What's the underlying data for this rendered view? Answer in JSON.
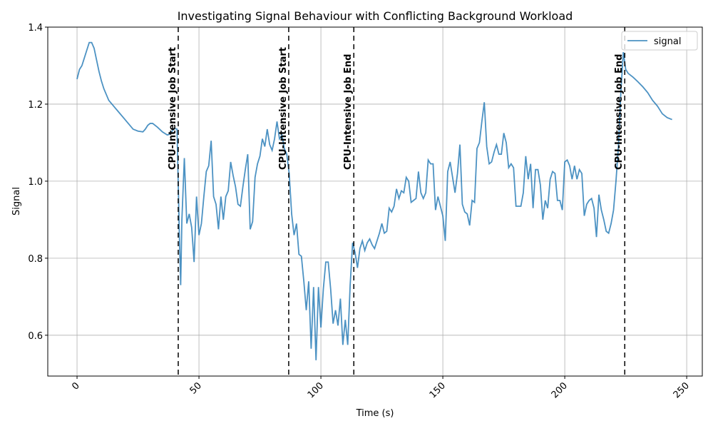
{
  "chart_data": {
    "type": "line",
    "title": "Investigating Signal Behaviour with Conflicting Background Workload",
    "x_label": "Time (s)",
    "y_label": "Signal",
    "x": [
      0,
      1,
      2,
      3,
      4,
      5,
      6,
      7,
      8,
      9,
      10,
      11,
      12,
      13,
      15,
      17,
      19,
      21,
      23,
      25,
      27,
      28,
      29,
      30,
      31,
      33,
      35,
      37,
      38,
      39,
      40,
      41,
      42,
      42.5,
      43,
      44,
      45,
      46,
      47,
      48,
      49,
      50,
      51,
      52,
      53,
      54,
      55,
      56,
      57,
      58,
      59,
      60,
      61,
      62,
      63,
      64,
      65,
      66,
      67,
      68,
      69,
      70,
      71,
      72,
      73,
      74,
      75,
      76,
      77,
      78,
      79,
      80,
      81,
      82,
      83,
      84,
      85,
      86,
      87,
      88,
      89,
      90,
      91,
      92,
      93,
      94,
      95,
      96,
      97,
      98,
      99,
      100,
      101,
      102,
      103,
      104,
      105,
      106,
      107,
      108,
      109,
      110,
      111,
      112,
      113,
      114,
      115,
      116,
      117,
      118,
      119,
      120,
      121,
      122,
      123,
      124,
      125,
      126,
      127,
      128,
      129,
      130,
      131,
      132,
      133,
      134,
      135,
      136,
      137,
      138,
      139,
      140,
      141,
      142,
      143,
      144,
      145,
      146,
      147,
      148,
      149,
      150,
      151,
      152,
      153,
      154,
      155,
      156,
      157,
      158,
      159,
      160,
      161,
      162,
      163,
      164,
      165,
      166,
      167,
      168,
      169,
      170,
      171,
      172,
      173,
      174,
      175,
      176,
      177,
      178,
      179,
      180,
      181,
      182,
      183,
      184,
      185,
      186,
      187,
      188,
      189,
      190,
      191,
      192,
      193,
      194,
      195,
      196,
      197,
      198,
      199,
      200,
      201,
      202,
      203,
      204,
      205,
      206,
      207,
      208,
      209,
      210,
      211,
      212,
      213,
      214,
      215,
      216,
      217,
      218,
      219,
      220,
      221,
      222,
      223,
      224,
      225,
      226,
      228,
      230,
      232,
      234,
      236,
      238,
      240,
      242,
      244
    ],
    "series": [
      {
        "name": "signal",
        "color": "#1f77b4",
        "values": [
          1.265,
          1.29,
          1.3,
          1.32,
          1.34,
          1.36,
          1.36,
          1.345,
          1.315,
          1.285,
          1.26,
          1.24,
          1.225,
          1.21,
          1.195,
          1.18,
          1.165,
          1.15,
          1.135,
          1.13,
          1.128,
          1.135,
          1.145,
          1.15,
          1.15,
          1.14,
          1.128,
          1.12,
          1.122,
          1.13,
          1.137,
          1.135,
          0.85,
          0.73,
          0.9,
          1.06,
          0.89,
          0.915,
          0.88,
          0.79,
          0.96,
          0.86,
          0.89,
          0.96,
          1.025,
          1.04,
          1.105,
          0.96,
          0.94,
          0.875,
          0.96,
          0.9,
          0.96,
          0.975,
          1.05,
          1.015,
          0.985,
          0.94,
          0.935,
          0.985,
          1.03,
          1.07,
          0.875,
          0.895,
          1.01,
          1.045,
          1.065,
          1.11,
          1.09,
          1.135,
          1.095,
          1.08,
          1.11,
          1.155,
          1.11,
          1.12,
          1.085,
          1.07,
          1.02,
          0.915,
          0.86,
          0.89,
          0.81,
          0.805,
          0.74,
          0.665,
          0.74,
          0.565,
          0.725,
          0.535,
          0.725,
          0.62,
          0.72,
          0.79,
          0.79,
          0.72,
          0.63,
          0.665,
          0.625,
          0.695,
          0.575,
          0.64,
          0.575,
          0.73,
          0.84,
          0.815,
          0.775,
          0.825,
          0.845,
          0.82,
          0.84,
          0.85,
          0.835,
          0.825,
          0.845,
          0.865,
          0.89,
          0.865,
          0.87,
          0.93,
          0.92,
          0.935,
          0.98,
          0.955,
          0.975,
          0.97,
          1.01,
          1.0,
          0.945,
          0.95,
          0.955,
          1.025,
          0.97,
          0.955,
          0.97,
          1.055,
          1.045,
          1.045,
          0.925,
          0.96,
          0.935,
          0.91,
          0.845,
          1.025,
          1.05,
          1.01,
          0.97,
          1.02,
          1.095,
          0.94,
          0.92,
          0.915,
          0.885,
          0.95,
          0.945,
          1.085,
          1.1,
          1.155,
          1.205,
          1.09,
          1.045,
          1.05,
          1.075,
          1.095,
          1.07,
          1.07,
          1.125,
          1.1,
          1.035,
          1.045,
          1.035,
          0.935,
          0.935,
          0.935,
          0.97,
          1.065,
          1.005,
          1.045,
          0.93,
          1.03,
          1.03,
          0.99,
          0.9,
          0.95,
          0.93,
          1.005,
          1.025,
          1.02,
          0.95,
          0.95,
          0.925,
          1.05,
          1.055,
          1.04,
          1.005,
          1.04,
          1.005,
          1.03,
          1.02,
          0.91,
          0.94,
          0.95,
          0.955,
          0.93,
          0.855,
          0.965,
          0.925,
          0.9,
          0.87,
          0.865,
          0.89,
          0.925,
          1.0,
          1.09,
          1.23,
          1.335,
          1.29,
          1.28,
          1.27,
          1.258,
          1.245,
          1.23,
          1.21,
          1.195,
          1.175,
          1.165,
          1.16
        ]
      }
    ],
    "annotations": [
      {
        "x": 41.5,
        "text": "CPU-Intensive Job Start"
      },
      {
        "x": 86.8,
        "text": "CPU-Intensive Job Start"
      },
      {
        "x": 113.5,
        "text": "CPU-Intensive Job End"
      },
      {
        "x": 224.6,
        "text": "CPU-Intensive Job End"
      }
    ],
    "xlim": [
      -12,
      256.4
    ],
    "ylim": [
      0.494,
      1.4
    ],
    "xticks": [
      0,
      50,
      100,
      150,
      200,
      250
    ],
    "yticks": [
      0.6,
      0.8,
      {
        "value": 1,
        "label": "1.0"
      },
      1.2,
      1.4
    ],
    "grid": true,
    "legend": "upper right"
  }
}
